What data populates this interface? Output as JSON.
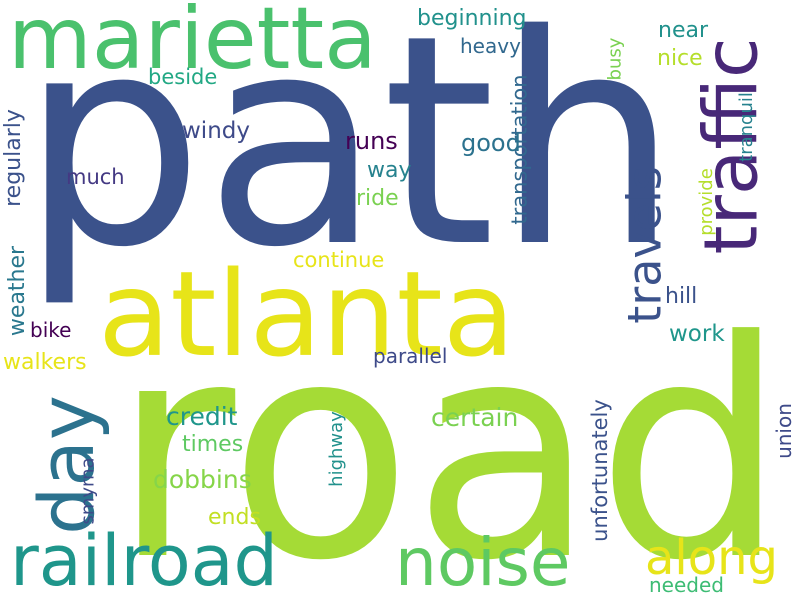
{
  "words": [
    {
      "text": "path",
      "color": "#3b528b"
    },
    {
      "text": "road",
      "color": "#a5db36"
    },
    {
      "text": "atlanta",
      "color": "#e7e419"
    },
    {
      "text": "marietta",
      "color": "#4ac16d"
    },
    {
      "text": "railroad",
      "color": "#1f968b"
    },
    {
      "text": "noise",
      "color": "#5ec962"
    },
    {
      "text": "traffic",
      "color": "#482878"
    },
    {
      "text": "day",
      "color": "#2c728e"
    },
    {
      "text": "travels",
      "color": "#3b528b"
    },
    {
      "text": "along",
      "color": "#e7e419"
    },
    {
      "text": "beginning",
      "color": "#21918c"
    },
    {
      "text": "near",
      "color": "#21918c"
    },
    {
      "text": "nice",
      "color": "#b5de2b"
    },
    {
      "text": "heavy",
      "color": "#31688e"
    },
    {
      "text": "busy",
      "color": "#7ad151"
    },
    {
      "text": "beside",
      "color": "#22a884"
    },
    {
      "text": "transportation",
      "color": "#31688e"
    },
    {
      "text": "tranquil",
      "color": "#26828e"
    },
    {
      "text": "windy",
      "color": "#3e4a89"
    },
    {
      "text": "regularly",
      "color": "#3b528b"
    },
    {
      "text": "runs",
      "color": "#440154"
    },
    {
      "text": "good",
      "color": "#2c728e"
    },
    {
      "text": "way",
      "color": "#26828e"
    },
    {
      "text": "much",
      "color": "#443983"
    },
    {
      "text": "ride",
      "color": "#7ad151"
    },
    {
      "text": "provide",
      "color": "#b5de2b"
    },
    {
      "text": "continue",
      "color": "#e7e419"
    },
    {
      "text": "hill",
      "color": "#3b528b"
    },
    {
      "text": "weather",
      "color": "#2a788e"
    },
    {
      "text": "bike",
      "color": "#440154"
    },
    {
      "text": "work",
      "color": "#1f968b"
    },
    {
      "text": "walkers",
      "color": "#e7e419"
    },
    {
      "text": "parallel",
      "color": "#3e4a89"
    },
    {
      "text": "unfortunately",
      "color": "#3b528b"
    },
    {
      "text": "union",
      "color": "#3e4a89"
    },
    {
      "text": "highway",
      "color": "#21918c"
    },
    {
      "text": "credit",
      "color": "#1f968b"
    },
    {
      "text": "certain",
      "color": "#7ad151"
    },
    {
      "text": "times",
      "color": "#5ec962"
    },
    {
      "text": "smyrna",
      "color": "#3e4a89"
    },
    {
      "text": "dobbins",
      "color": "#86d549"
    },
    {
      "text": "ends",
      "color": "#c2df23"
    },
    {
      "text": "needed",
      "color": "#3dbc74"
    }
  ]
}
